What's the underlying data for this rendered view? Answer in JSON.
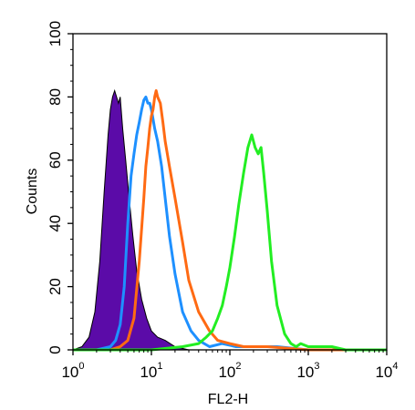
{
  "chart_data": {
    "type": "area",
    "xlabel": "FL2-H",
    "ylabel": "Counts",
    "x_scale": "log",
    "xlim": [
      1,
      10000
    ],
    "ylim": [
      0,
      100
    ],
    "x_ticks": [
      {
        "base": "10",
        "exp": "0"
      },
      {
        "base": "10",
        "exp": "1"
      },
      {
        "base": "10",
        "exp": "2"
      },
      {
        "base": "10",
        "exp": "3"
      },
      {
        "base": "10",
        "exp": "4"
      }
    ],
    "y_ticks": [
      "0",
      "20",
      "40",
      "60",
      "80",
      "100"
    ],
    "grid": false,
    "series": [
      {
        "color": "#5b0ba8",
        "fill": true,
        "x": [
          1.0,
          1.3,
          1.6,
          1.9,
          2.2,
          2.5,
          2.8,
          3.0,
          3.2,
          3.4,
          3.6,
          3.8,
          4.0,
          4.3,
          4.7,
          5.2,
          5.8,
          6.5,
          7.5,
          8.7,
          10.0,
          12.0,
          15.0,
          20.0,
          30.0,
          50.0,
          100.0
        ],
        "y": [
          0,
          1,
          4,
          12,
          28,
          50,
          68,
          76,
          80,
          82,
          80,
          78,
          80,
          70,
          60,
          48,
          36,
          25,
          16,
          10,
          6,
          4,
          3,
          1,
          0,
          0,
          0
        ]
      },
      {
        "color": "#1e90ff",
        "fill": false,
        "x": [
          1.0,
          2.0,
          3.0,
          3.5,
          4.0,
          4.5,
          5.0,
          5.5,
          6.0,
          6.5,
          7.0,
          7.5,
          8.0,
          8.5,
          9.0,
          9.5,
          10.0,
          11.0,
          12.0,
          13.5,
          15.0,
          17.0,
          20.0,
          25.0,
          32.0,
          40.0,
          55.0,
          80.0,
          120.0,
          200.0,
          400.0,
          1000.0,
          10000.0
        ],
        "y": [
          0,
          0,
          1,
          3,
          8,
          20,
          40,
          55,
          62,
          68,
          72,
          76,
          79,
          80,
          78,
          78,
          76,
          70,
          66,
          58,
          48,
          36,
          24,
          12,
          6,
          3,
          1,
          2,
          1,
          1,
          1,
          0,
          0
        ]
      },
      {
        "color": "#ff6a13",
        "fill": false,
        "x": [
          1.0,
          3.0,
          4.0,
          5.0,
          6.0,
          7.0,
          8.0,
          8.5,
          9.0,
          9.5,
          10.0,
          10.5,
          11.0,
          11.5,
          12.0,
          13.0,
          14.0,
          15.0,
          17.0,
          20.0,
          25.0,
          30.0,
          40.0,
          55.0,
          70.0,
          100.0,
          150.0,
          300.0,
          1000.0,
          10000.0
        ],
        "y": [
          0,
          0,
          1,
          3,
          10,
          28,
          48,
          58,
          64,
          70,
          74,
          76,
          80,
          82,
          80,
          78,
          72,
          66,
          58,
          48,
          34,
          22,
          12,
          6,
          3,
          2,
          1,
          1,
          0,
          0
        ]
      },
      {
        "color": "#22ee22",
        "fill": false,
        "x": [
          1.0,
          10.0,
          25.0,
          40.0,
          50.0,
          60.0,
          70.0,
          80.0,
          90.0,
          100.0,
          115.0,
          130.0,
          150.0,
          170.0,
          190.0,
          210.0,
          230.0,
          250.0,
          270.0,
          300.0,
          340.0,
          400.0,
          500.0,
          600.0,
          700.0,
          800.0,
          1000.0,
          2000.0,
          3000.0,
          10000.0
        ],
        "y": [
          0,
          0,
          1,
          2,
          4,
          6,
          10,
          14,
          20,
          26,
          36,
          46,
          56,
          64,
          68,
          64,
          62,
          64,
          56,
          44,
          28,
          14,
          5,
          2,
          1,
          2,
          1,
          1,
          0,
          0
        ]
      }
    ]
  }
}
